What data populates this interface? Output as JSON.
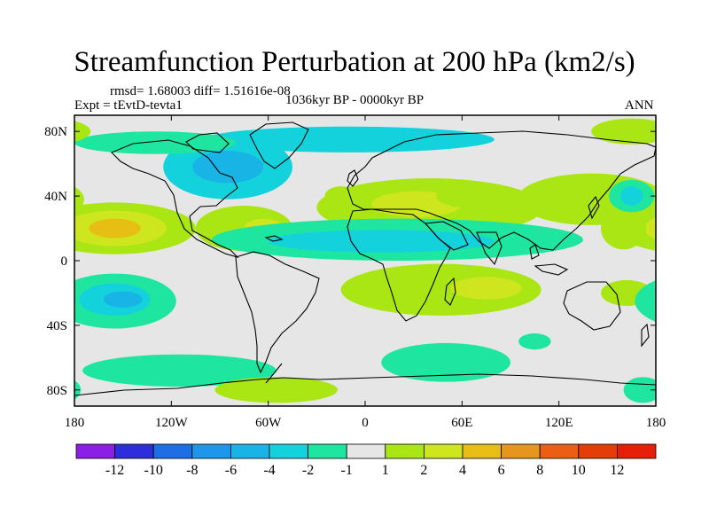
{
  "chart_data": {
    "type": "heatmap",
    "title": "Streamfunction Perturbation at 200 hPa (km2/s)",
    "stats_line": "rmsd= 1.68003 diff= 1.51616e-08",
    "experiment_line": "Expt = tEvtD-tevta1",
    "period_line": "1036kyr BP - 0000kyr BP",
    "season_label": "ANN",
    "x_axis": {
      "range": [
        -180,
        180
      ],
      "ticks": [
        {
          "value": -180,
          "label": "180"
        },
        {
          "value": -120,
          "label": "120W"
        },
        {
          "value": -60,
          "label": "60W"
        },
        {
          "value": 0,
          "label": "0"
        },
        {
          "value": 60,
          "label": "60E"
        },
        {
          "value": 120,
          "label": "120E"
        },
        {
          "value": 180,
          "label": "180"
        }
      ]
    },
    "y_axis": {
      "range": [
        -90,
        90
      ],
      "ticks": [
        {
          "value": 80,
          "label": "80N"
        },
        {
          "value": 40,
          "label": "40N"
        },
        {
          "value": 0,
          "label": "0"
        },
        {
          "value": -40,
          "label": "40S"
        },
        {
          "value": -80,
          "label": "80S"
        }
      ]
    },
    "colorbar": {
      "labels": [
        "-12",
        "-10",
        "-8",
        "-6",
        "-4",
        "-2",
        "-1",
        "1",
        "2",
        "4",
        "6",
        "8",
        "10",
        "12"
      ],
      "colors": [
        "#8c1ee6",
        "#2d2ddc",
        "#1e6ee6",
        "#1e96eb",
        "#19b4e6",
        "#14d2dc",
        "#1ee6a0",
        "#e6e6e6",
        "#aae614",
        "#cde61e",
        "#e6be14",
        "#e6961e",
        "#eb5f14",
        "#e63c0a",
        "#e61e0a"
      ]
    },
    "anomalies": [
      {
        "lon": 40,
        "lat": 33,
        "w": 70,
        "h": 18,
        "level": 2
      },
      {
        "lon": 32,
        "lat": 35,
        "w": 28,
        "h": 8,
        "level": 4
      },
      {
        "lon": 140,
        "lat": 38,
        "w": 46,
        "h": 16,
        "level": 2
      },
      {
        "lon": 62,
        "lat": 40,
        "w": 18,
        "h": 7,
        "level": 2
      },
      {
        "lon": -15,
        "lat": 40,
        "w": 10,
        "h": 6,
        "level": 2
      },
      {
        "lon": -75,
        "lat": 20,
        "w": 30,
        "h": 14,
        "level": 2
      },
      {
        "lon": -63,
        "lat": 20,
        "w": 12,
        "h": 6,
        "level": 4
      },
      {
        "lon": -155,
        "lat": 20,
        "w": 50,
        "h": 16,
        "level": 2
      },
      {
        "lon": -155,
        "lat": 20,
        "w": 32,
        "h": 11,
        "level": 4
      },
      {
        "lon": -155,
        "lat": 20,
        "w": 16,
        "h": 6,
        "level": 6
      },
      {
        "lon": 160,
        "lat": 20,
        "w": 14,
        "h": 13,
        "level": 2
      },
      {
        "lon": 47,
        "lat": -18,
        "w": 62,
        "h": 16,
        "level": 2
      },
      {
        "lon": 75,
        "lat": -17,
        "w": 22,
        "h": 7,
        "level": 4
      },
      {
        "lon": 162,
        "lat": -20,
        "w": 16,
        "h": 8,
        "level": 2
      },
      {
        "lon": -85,
        "lat": 58,
        "w": 40,
        "h": 20,
        "level": -2
      },
      {
        "lon": -85,
        "lat": 58,
        "w": 22,
        "h": 10,
        "level": -4
      },
      {
        "lon": -10,
        "lat": 75,
        "w": 90,
        "h": 8,
        "level": -2
      },
      {
        "lon": -130,
        "lat": 73,
        "w": 50,
        "h": 7,
        "level": -1
      },
      {
        "lon": 20,
        "lat": 13,
        "w": 115,
        "h": 13,
        "level": -1
      },
      {
        "lon": 10,
        "lat": 12,
        "w": 70,
        "h": 7,
        "level": -2
      },
      {
        "lon": -155,
        "lat": -25,
        "w": 38,
        "h": 17,
        "level": -1
      },
      {
        "lon": -155,
        "lat": -24,
        "w": 22,
        "h": 10,
        "level": -2
      },
      {
        "lon": -150,
        "lat": -24,
        "w": 12,
        "h": 5,
        "level": -4
      },
      {
        "lon": -115,
        "lat": -68,
        "w": 60,
        "h": 10,
        "level": -1
      },
      {
        "lon": 50,
        "lat": -63,
        "w": 40,
        "h": 12,
        "level": -1
      },
      {
        "lon": 165,
        "lat": 40,
        "w": 14,
        "h": 10,
        "level": -1
      },
      {
        "lon": 165,
        "lat": 40,
        "w": 7,
        "h": 6,
        "level": -2
      },
      {
        "lon": 105,
        "lat": -50,
        "w": 10,
        "h": 5,
        "level": -1
      },
      {
        "lon": 172,
        "lat": -80,
        "w": 12,
        "h": 8,
        "level": -1
      },
      {
        "lon": -55,
        "lat": -80,
        "w": 38,
        "h": 8,
        "level": 2
      },
      {
        "lon": 165,
        "lat": 80,
        "w": 25,
        "h": 8,
        "level": 2
      }
    ]
  }
}
